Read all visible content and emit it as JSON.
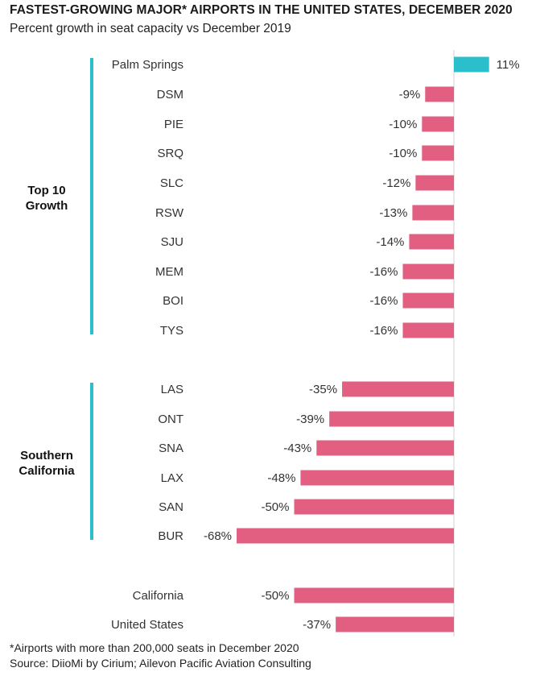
{
  "title": "FASTEST-GROWING MAJOR* AIRPORTS IN THE UNITED STATES, DECEMBER 2020",
  "subtitle": "Percent growth in seat capacity vs December 2019",
  "footnote": "*Airports with more than 200,000 seats in December 2020",
  "source": "Source: DiioMi by Cirium; Ailevon Pacific Aviation Consulting",
  "colors": {
    "positive": "#2bbfcc",
    "negative": "#e25f82",
    "group_bar": "#2bbfcc",
    "axis": "#d0d0d0"
  },
  "chart_data": {
    "type": "bar",
    "orientation": "horizontal",
    "title": "FASTEST-GROWING MAJOR* AIRPORTS IN THE UNITED STATES, DECEMBER 2020",
    "subtitle": "Percent growth in seat capacity vs December 2019",
    "unit": "%",
    "categories": [
      "Palm Springs",
      "DSM",
      "PIE",
      "SRQ",
      "SLC",
      "RSW",
      "SJU",
      "MEM",
      "BOI",
      "TYS",
      "LAS",
      "ONT",
      "SNA",
      "LAX",
      "SAN",
      "BUR",
      "California",
      "United States"
    ],
    "values": [
      11,
      -9,
      -10,
      -10,
      -12,
      -13,
      -14,
      -16,
      -16,
      -16,
      -35,
      -39,
      -43,
      -48,
      -50,
      -68,
      -50,
      -37
    ],
    "value_labels": [
      "11%",
      "-9%",
      "-10%",
      "-10%",
      "-12%",
      "-13%",
      "-14%",
      "-16%",
      "-16%",
      "-16%",
      "-35%",
      "-39%",
      "-43%",
      "-48%",
      "-50%",
      "-68%",
      "-50%",
      "-37%"
    ],
    "groups": [
      {
        "label_lines": [
          "Top 10",
          "Growth"
        ],
        "start": 0,
        "end": 9
      },
      {
        "label_lines": [
          "Southern",
          "California"
        ],
        "start": 10,
        "end": 15
      }
    ],
    "xlim": [
      -70,
      12
    ],
    "grid": false,
    "legend": "none"
  }
}
